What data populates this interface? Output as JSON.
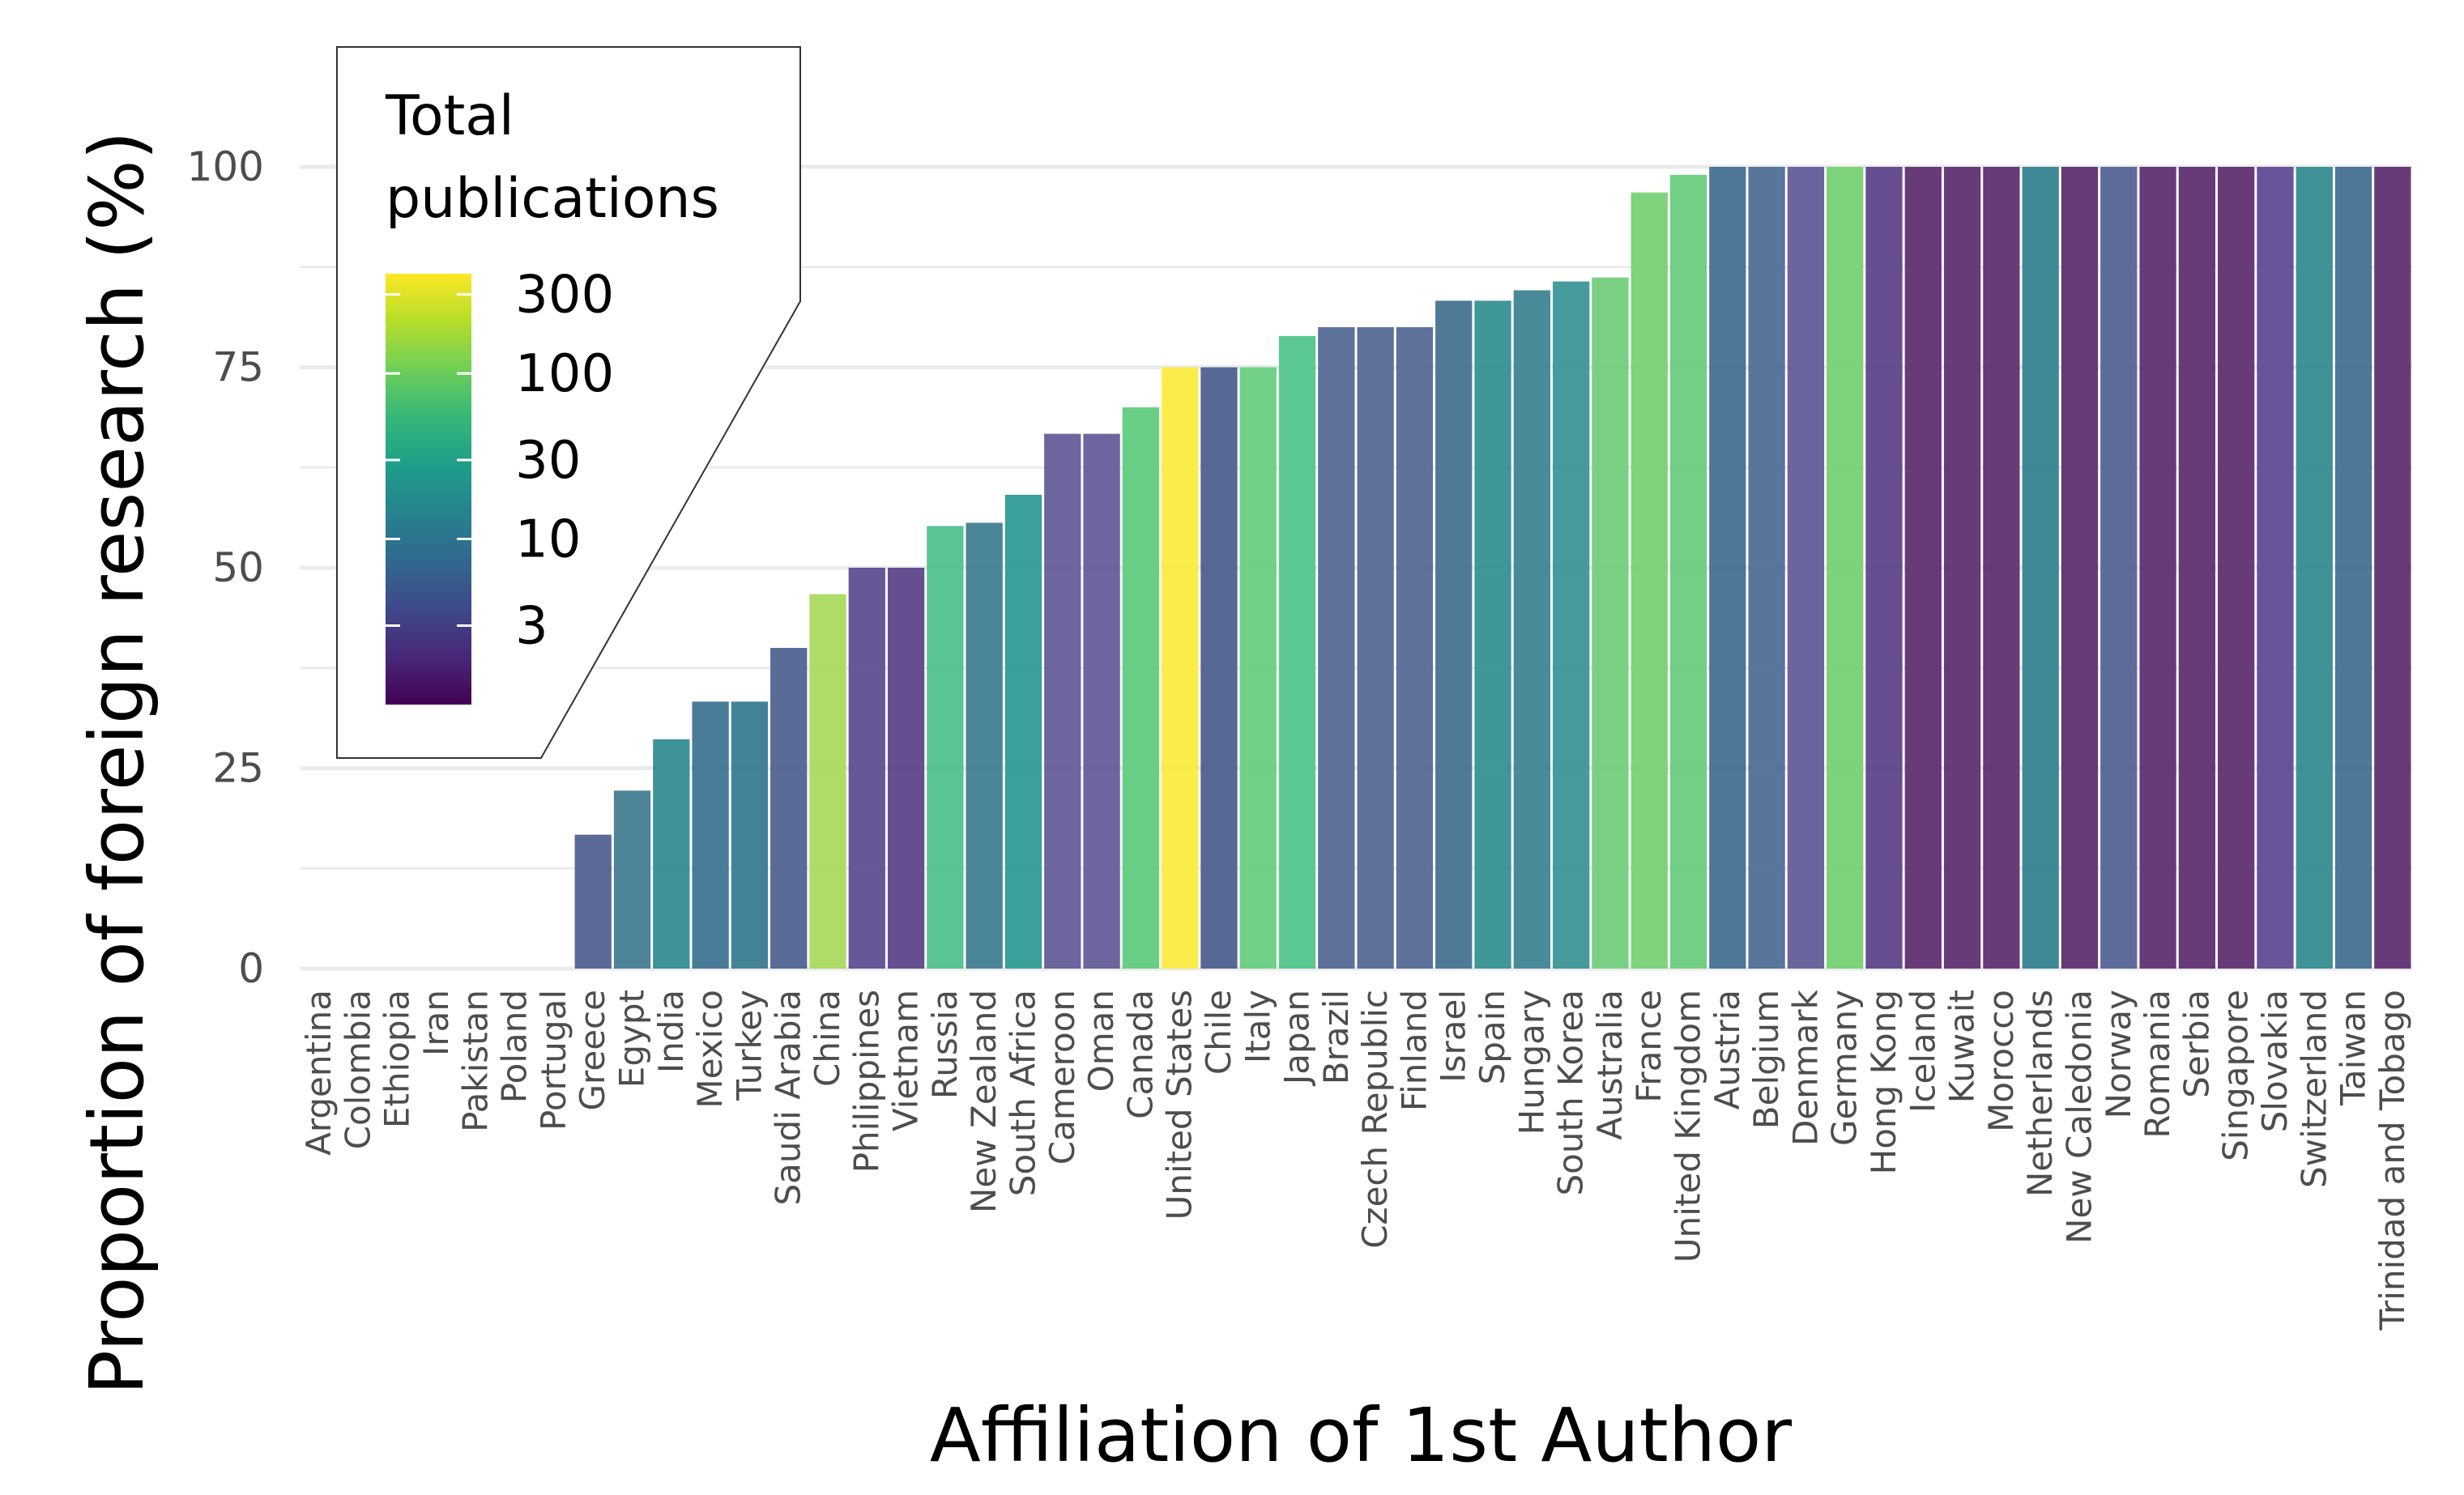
{
  "chart_data": {
    "type": "bar",
    "xlabel": "Affiliation of 1st Author",
    "ylabel": "Proportion of foreign research (%)",
    "ylim": [
      0,
      112
    ],
    "yticks": [
      0,
      25,
      50,
      75,
      100
    ],
    "grid": true,
    "categories": [
      "Argentina",
      "Colombia",
      "Ethiopia",
      "Iran",
      "Pakistan",
      "Poland",
      "Portugal",
      "Greece",
      "Egypt",
      "India",
      "Mexico",
      "Turkey",
      "Saudi Arabia",
      "China",
      "Philippines",
      "Vietnam",
      "Russia",
      "New Zealand",
      "South Africa",
      "Cameroon",
      "Oman",
      "Canada",
      "United States",
      "Chile",
      "Italy",
      "Japan",
      "Brazil",
      "Czech Republic",
      "Finland",
      "Israel",
      "Spain",
      "Hungary",
      "South Korea",
      "Australia",
      "France",
      "United Kingdom",
      "Austria",
      "Belgium",
      "Denmark",
      "Germany",
      "Hong Kong",
      "Iceland",
      "Kuwait",
      "Morocco",
      "Netherlands",
      "New Caledonia",
      "Norway",
      "Romania",
      "Serbia",
      "Singapore",
      "Slovakia",
      "Switzerland",
      "Taiwan",
      "Trinidad and Tobago"
    ],
    "values": [
      0,
      0,
      0,
      0,
      0,
      0,
      0,
      16.7,
      22.2,
      28.6,
      33.3,
      33.3,
      40,
      46.7,
      50,
      50,
      55.2,
      55.6,
      59.1,
      66.7,
      66.7,
      70,
      75,
      75,
      75,
      78.9,
      80,
      80,
      80,
      83.3,
      83.3,
      84.6,
      85.7,
      86.2,
      96.8,
      99,
      100,
      100,
      100,
      100,
      100,
      100,
      100,
      100,
      100,
      100,
      100,
      100,
      100,
      100,
      100,
      100,
      100,
      100
    ],
    "fill_colors": [
      "#3f5d8a",
      "#3a6d8d",
      "#2e858c",
      "#3b6b8f",
      "#3d688e",
      "#3d688e",
      "#3d688e",
      "#4d5c8f",
      "#3f7a8e",
      "#2d8a8e",
      "#3b708f",
      "#34788e",
      "#4b5f8f",
      "#a8d85a",
      "#5a4990",
      "#5a3f88",
      "#4dbf8a",
      "#3b7c8e",
      "#2a9890",
      "#5f5896",
      "#5f5896",
      "#5ccb7a",
      "#fbea3c",
      "#4a5b8c",
      "#64cd7c",
      "#4dc389",
      "#4f6592",
      "#4f6592",
      "#4f6592",
      "#3f6f8f",
      "#2f8e8f",
      "#3a808f",
      "#349291",
      "#6fcd79",
      "#74cf72",
      "#65cc78",
      "#3f6b91",
      "#4a6a92",
      "#5d5894",
      "#72cf6e",
      "#5a3f88",
      "#5a2a6e",
      "#5a2a6e",
      "#5a2a6e",
      "#2f7f8e",
      "#5a2a6e",
      "#4f5f92",
      "#5a2a6e",
      "#5a2a6e",
      "#5a2a6e",
      "#5d4590",
      "#2f8a8e",
      "#3f6b91",
      "#5a2a6e"
    ],
    "legend": {
      "title_lines": [
        "Total",
        "publications"
      ],
      "placement": "top-left",
      "labels": [
        "300",
        "100",
        "30",
        "10",
        "3"
      ],
      "label_values": [
        300,
        100,
        30,
        10,
        3
      ],
      "scale": "log",
      "range": [
        1,
        400
      ],
      "colormap": "viridis",
      "stops": [
        "#440154",
        "#482878",
        "#3e4989",
        "#31688e",
        "#26828e",
        "#1f9e89",
        "#35b779",
        "#6ece58",
        "#b5de2b",
        "#fde725"
      ]
    }
  }
}
